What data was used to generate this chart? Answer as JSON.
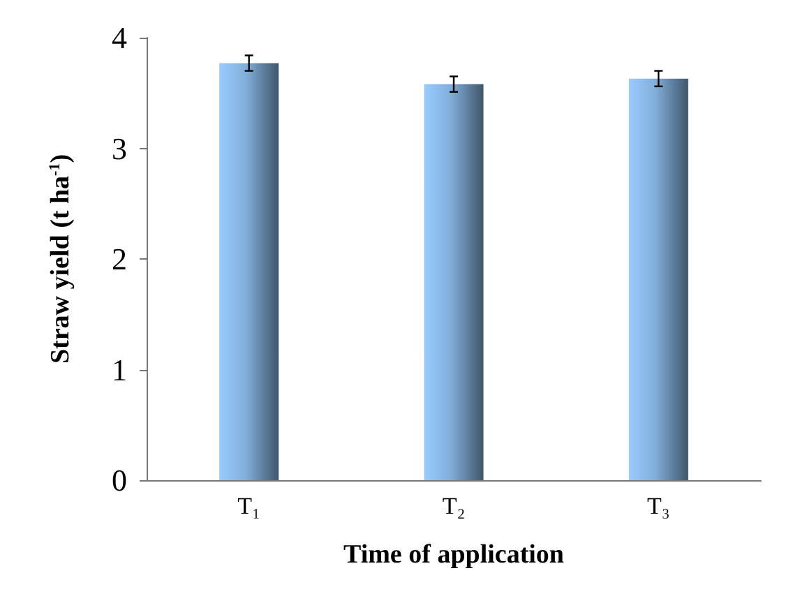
{
  "chart_data": {
    "type": "bar",
    "xlabel": "Time of application",
    "ylabel": "Straw yield (t ha$^{-1}$)",
    "categories": [
      "T₁",
      "T₂",
      "T₃"
    ],
    "values": [
      3.77,
      3.58,
      3.63
    ],
    "errors": [
      0.07,
      0.07,
      0.07
    ],
    "color": "#99ccff",
    "ylim": [
      0,
      4
    ],
    "yticks": [
      0,
      1,
      2,
      3,
      4
    ],
    "grid": false
  }
}
